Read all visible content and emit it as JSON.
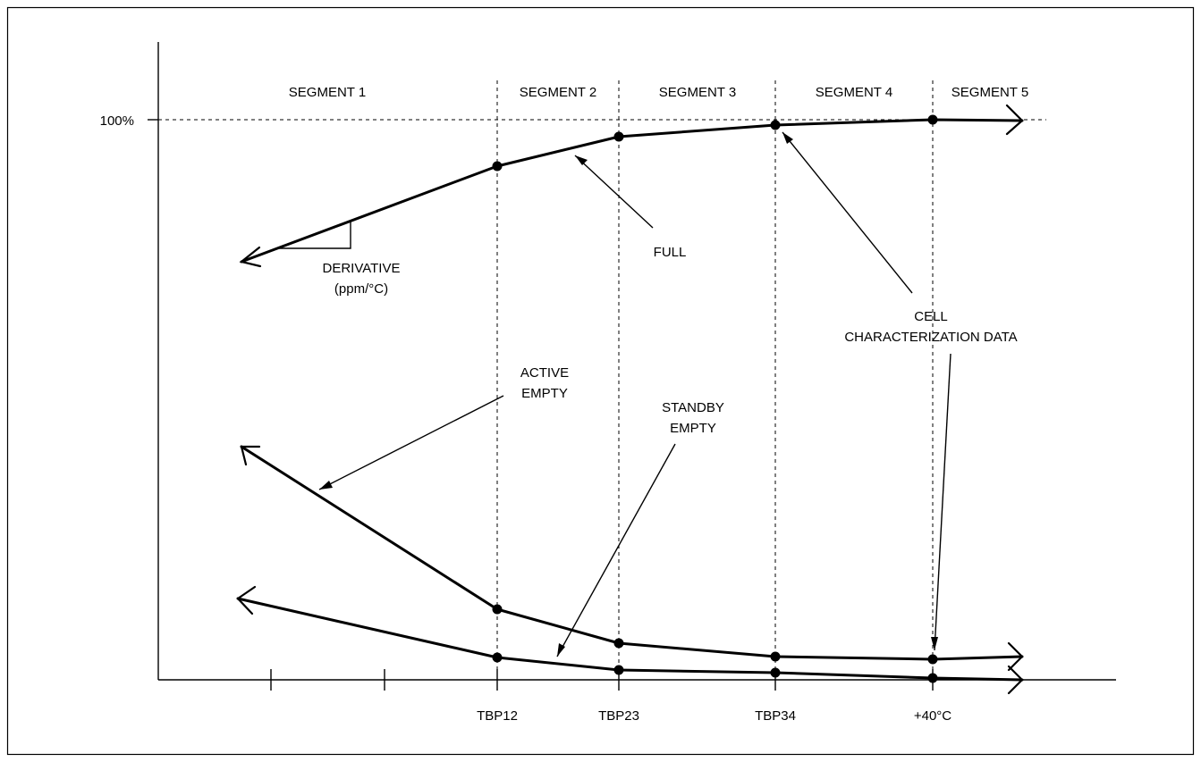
{
  "figure": {
    "y_label_100": "100%",
    "segments": [
      "SEGMENT 1",
      "SEGMENT 2",
      "SEGMENT 3",
      "SEGMENT 4",
      "SEGMENT 5"
    ],
    "x_ticks": [
      "TBP12",
      "TBP23",
      "TBP34",
      "+40°C"
    ],
    "derivative_label": [
      "DERIVATIVE",
      "(ppm/°C)"
    ],
    "full_label": "FULL",
    "cell_label": [
      "CELL",
      "CHARACTERIZATION DATA"
    ],
    "active_label": [
      "ACTIVE",
      "EMPTY"
    ],
    "standby_label": [
      "STANDBY",
      "EMPTY"
    ]
  }
}
